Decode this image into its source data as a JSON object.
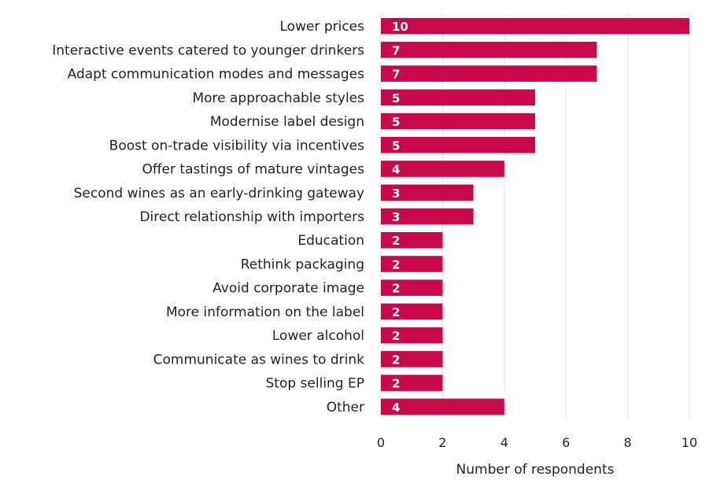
{
  "chart_data": {
    "type": "bar",
    "orientation": "horizontal",
    "categories": [
      "Lower prices",
      "Interactive events catered to younger drinkers",
      "Adapt communication modes and messages",
      "More approachable styles",
      "Modernise label design",
      "Boost on-trade visibility via incentives",
      "Offer tastings of mature vintages",
      "Second wines as an early-drinking gateway",
      "Direct relationship with importers",
      "Education",
      "Rethink packaging",
      "Avoid corporate image",
      "More information on the label",
      "Lower alcohol",
      "Communicate as wines to drink",
      "Stop selling EP",
      "Other"
    ],
    "values": [
      10,
      7,
      7,
      5,
      5,
      5,
      4,
      3,
      3,
      2,
      2,
      2,
      2,
      2,
      2,
      2,
      4
    ],
    "xlabel": "Number of respondents",
    "xlim": [
      0,
      10
    ],
    "xticks": [
      0,
      2,
      4,
      6,
      8,
      10
    ],
    "grid": true,
    "bar_color": "#c8084a",
    "data_labels": true
  }
}
